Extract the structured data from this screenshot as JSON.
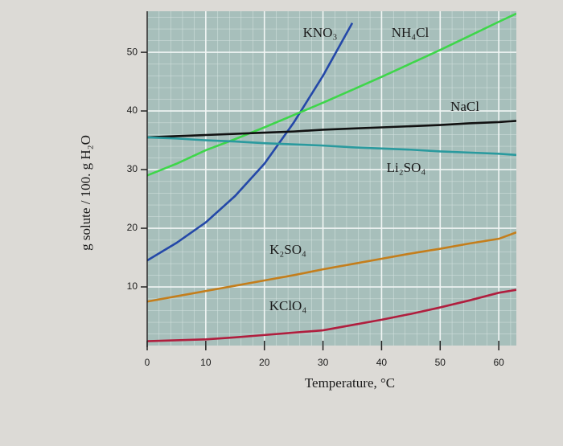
{
  "chart_data": {
    "type": "line",
    "x_label": "Temperature, °C",
    "y_label": "g solute / 100. g H₂O",
    "x": [
      0,
      5,
      10,
      15,
      20,
      25,
      30,
      35,
      40,
      45,
      50,
      55,
      60,
      63
    ],
    "series": [
      {
        "name": "KNO₃",
        "color": "#2448a8",
        "values": [
          14.5,
          17.5,
          21,
          25.5,
          31,
          38,
          46,
          55,
          null,
          null,
          null,
          null,
          null,
          null
        ]
      },
      {
        "name": "NH₄Cl",
        "color": "#3ed64a",
        "values": [
          29,
          31,
          33.3,
          35.2,
          37.2,
          39.3,
          41.4,
          43.6,
          45.8,
          48.1,
          50.4,
          52.8,
          55.2,
          56.6
        ]
      },
      {
        "name": "NaCl",
        "color": "#111111",
        "values": [
          35.5,
          35.7,
          35.9,
          36.1,
          36.3,
          36.5,
          36.8,
          37,
          37.2,
          37.4,
          37.6,
          37.9,
          38.1,
          38.3
        ]
      },
      {
        "name": "Li₂SO₄",
        "color": "#2a9a9e",
        "values": [
          35.5,
          35.3,
          35,
          34.8,
          34.5,
          34.3,
          34.1,
          33.8,
          33.6,
          33.4,
          33.1,
          32.9,
          32.7,
          32.5
        ]
      },
      {
        "name": "K₂SO₄",
        "color": "#c47e1c",
        "values": [
          7.5,
          8.4,
          9.3,
          10.2,
          11.1,
          12,
          13,
          13.9,
          14.8,
          15.7,
          16.5,
          17.4,
          18.2,
          19.3
        ]
      },
      {
        "name": "KClO₄",
        "color": "#b01e3e",
        "values": [
          0.75,
          0.9,
          1.05,
          1.4,
          1.8,
          2.2,
          2.6,
          3.5,
          4.4,
          5.4,
          6.5,
          7.7,
          9,
          9.5
        ]
      }
    ],
    "xlim": [
      0,
      63
    ],
    "ylim": [
      0,
      57
    ],
    "xticks": [
      0,
      10,
      20,
      30,
      40,
      50,
      60
    ],
    "yticks": [
      10,
      20,
      30,
      40,
      50
    ],
    "grid": true
  }
}
